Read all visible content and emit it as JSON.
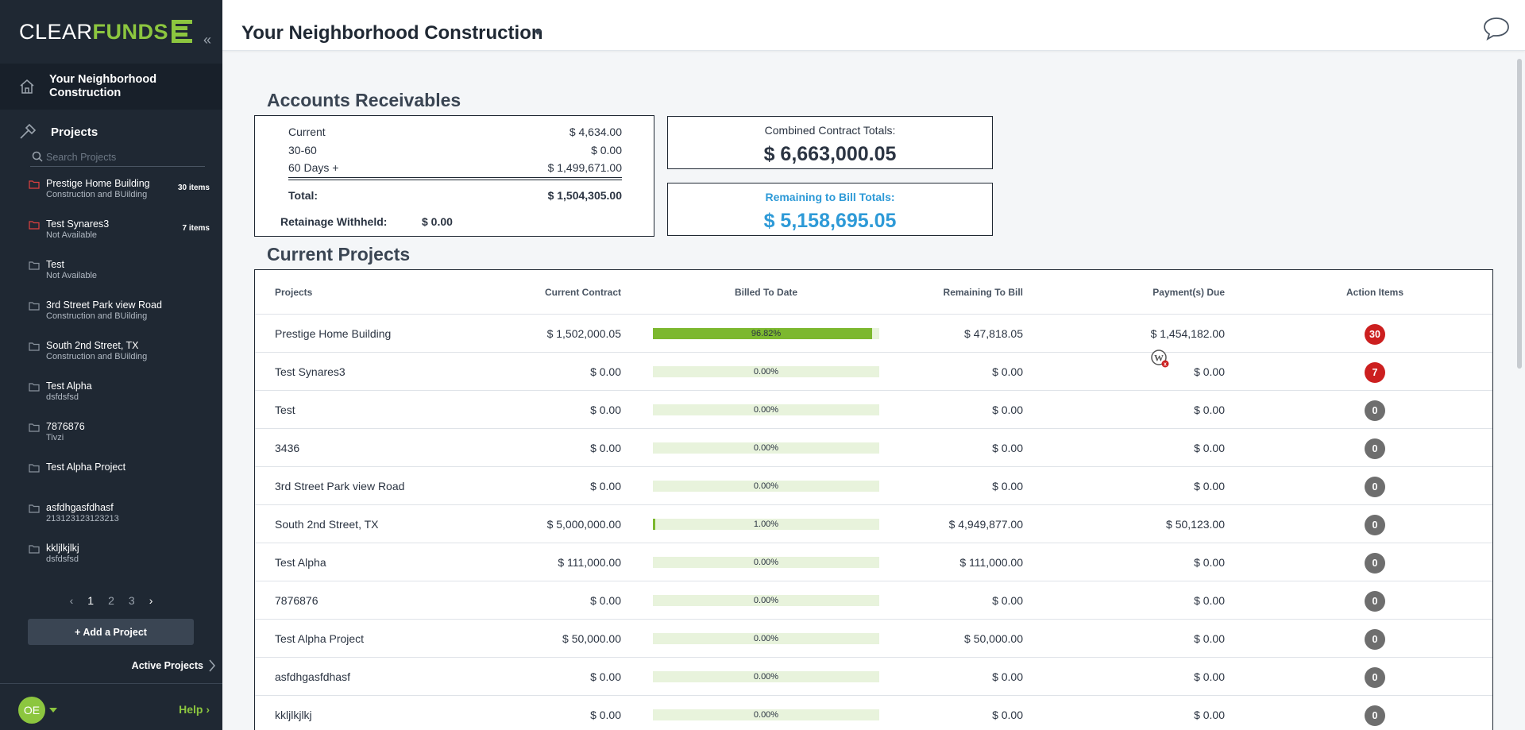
{
  "sidebar": {
    "logo_part1": "CLEAR",
    "logo_part2": "FUNDS",
    "company": "Your Neighborhood Construction",
    "projects_label": "Projects",
    "search_placeholder": "Search Projects",
    "projects": [
      {
        "name": "Prestige Home Building",
        "sub": "Construction and BUilding",
        "count": "30 items",
        "color": "#e04040"
      },
      {
        "name": "Test Synares3",
        "sub": "Not Available",
        "count": "7 items",
        "color": "#e04040"
      },
      {
        "name": "Test",
        "sub": "Not Available",
        "count": "",
        "color": "#8a939e"
      },
      {
        "name": "3rd Street Park view Road",
        "sub": "Construction and BUilding",
        "count": "",
        "color": "#8a939e"
      },
      {
        "name": "South 2nd Street, TX",
        "sub": "Construction and BUilding",
        "count": "",
        "color": "#8a939e"
      },
      {
        "name": "Test Alpha",
        "sub": "dsfdsfsd",
        "count": "",
        "color": "#8a939e"
      },
      {
        "name": "7876876",
        "sub": "Tivzi",
        "count": "",
        "color": "#8a939e"
      },
      {
        "name": "Test Alpha Project",
        "sub": "",
        "count": "",
        "color": "#8a939e"
      },
      {
        "name": "asfdhgasfdhasf",
        "sub": "213123123123213",
        "count": "",
        "color": "#8a939e"
      },
      {
        "name": "kkljlkjlkj",
        "sub": "dsfdsfsd",
        "count": "",
        "color": "#8a939e"
      }
    ],
    "pages": [
      "1",
      "2",
      "3"
    ],
    "add_project": "+ Add a Project",
    "active_projects": "Active Projects",
    "avatar": "OE",
    "help": "Help"
  },
  "topbar": {
    "title": "Your Neighborhood Construction"
  },
  "receivables": {
    "heading": "Accounts Receivables",
    "rows": [
      {
        "label": "Current",
        "value": "$ 4,634.00"
      },
      {
        "label": "30-60",
        "value": "$ 0.00"
      },
      {
        "label": "60 Days +",
        "value": "$ 1,499,671.00"
      }
    ],
    "total_label": "Total:",
    "total_value": "$ 1,504,305.00",
    "retainage_label": "Retainage Withheld:",
    "retainage_value": "$ 0.00"
  },
  "totals": {
    "combined_label": "Combined Contract Totals:",
    "combined_value": "$ 6,663,000.05",
    "remaining_label": "Remaining to Bill Totals:",
    "remaining_value": "$ 5,158,695.05"
  },
  "current_projects": {
    "heading": "Current Projects",
    "columns": [
      "Projects",
      "Current Contract",
      "Billed To Date",
      "Remaining To Bill",
      "Payment(s) Due",
      "Action Items"
    ],
    "rows": [
      {
        "name": "Prestige Home Building",
        "contract": "$ 1,502,000.05",
        "billed_pct": 96.82,
        "billed_label": "96.82%",
        "remaining": "$ 47,818.05",
        "due": "$ 1,454,182.00",
        "actions": "30",
        "alert": true
      },
      {
        "name": "Test Synares3",
        "contract": "$ 0.00",
        "billed_pct": 0,
        "billed_label": "0.00%",
        "remaining": "$ 0.00",
        "due": "$ 0.00",
        "actions": "7",
        "alert": true
      },
      {
        "name": "Test",
        "contract": "$ 0.00",
        "billed_pct": 0,
        "billed_label": "0.00%",
        "remaining": "$ 0.00",
        "due": "$ 0.00",
        "actions": "0",
        "alert": false
      },
      {
        "name": "3436",
        "contract": "$ 0.00",
        "billed_pct": 0,
        "billed_label": "0.00%",
        "remaining": "$ 0.00",
        "due": "$ 0.00",
        "actions": "0",
        "alert": false
      },
      {
        "name": "3rd Street Park view Road",
        "contract": "$ 0.00",
        "billed_pct": 0,
        "billed_label": "0.00%",
        "remaining": "$ 0.00",
        "due": "$ 0.00",
        "actions": "0",
        "alert": false
      },
      {
        "name": "South 2nd Street, TX",
        "contract": "$ 5,000,000.00",
        "billed_pct": 1.0,
        "billed_label": "1.00%",
        "remaining": "$ 4,949,877.00",
        "due": "$ 50,123.00",
        "actions": "0",
        "alert": false
      },
      {
        "name": "Test Alpha",
        "contract": "$ 111,000.00",
        "billed_pct": 0,
        "billed_label": "0.00%",
        "remaining": "$ 111,000.00",
        "due": "$ 0.00",
        "actions": "0",
        "alert": false
      },
      {
        "name": "7876876",
        "contract": "$ 0.00",
        "billed_pct": 0,
        "billed_label": "0.00%",
        "remaining": "$ 0.00",
        "due": "$ 0.00",
        "actions": "0",
        "alert": false
      },
      {
        "name": "Test Alpha Project",
        "contract": "$ 50,000.00",
        "billed_pct": 0,
        "billed_label": "0.00%",
        "remaining": "$ 50,000.00",
        "due": "$ 0.00",
        "actions": "0",
        "alert": false
      },
      {
        "name": "asfdhgasfdhasf",
        "contract": "$ 0.00",
        "billed_pct": 0,
        "billed_label": "0.00%",
        "remaining": "$ 0.00",
        "due": "$ 0.00",
        "actions": "0",
        "alert": false
      },
      {
        "name": "kkljlkjlkj",
        "contract": "$ 0.00",
        "billed_pct": 0,
        "billed_label": "0.00%",
        "remaining": "$ 0.00",
        "due": "$ 0.00",
        "actions": "0",
        "alert": false
      }
    ]
  },
  "colors": {
    "brand_green": "#8cc63f",
    "accent_blue": "#2e9ad7",
    "alert_red": "#cc1f1f"
  }
}
